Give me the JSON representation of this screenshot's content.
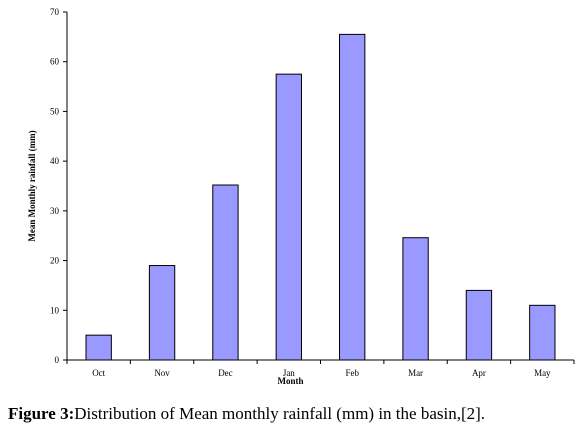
{
  "chart_data": {
    "type": "bar",
    "xlabel": "Month",
    "ylabel": "Mean Monthly rainfall (mm)",
    "categories": [
      "Oct",
      "Nov",
      "Dec",
      "Jan",
      "Feb",
      "Mar",
      "Apr",
      "May"
    ],
    "values": [
      5,
      19,
      35.2,
      57.5,
      65.5,
      24.6,
      14,
      11
    ],
    "ylim": [
      0,
      70
    ],
    "yticks": [
      "0",
      "10",
      "20",
      "30",
      "40",
      "50",
      "60",
      "70"
    ],
    "grid": false,
    "legend": "none",
    "bar_color": "#9999ff",
    "bar_edge": "#000000"
  },
  "caption": {
    "label": "Figure  3:",
    "text": "Distribution of Mean monthly rainfall (mm) in the basin,[2]."
  }
}
